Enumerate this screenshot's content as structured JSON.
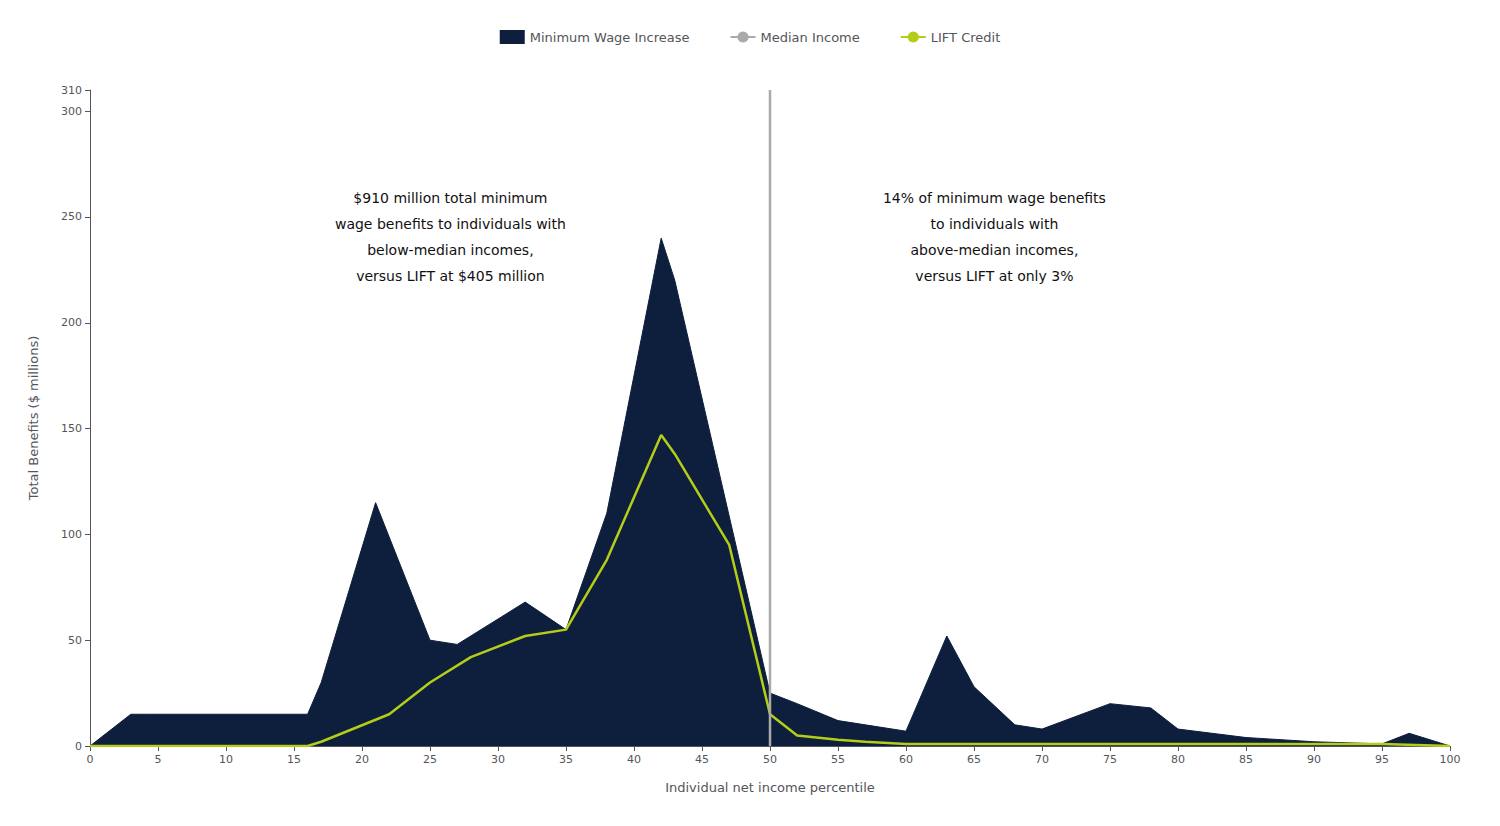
{
  "chart_data": {
    "type": "line",
    "xlabel": "Individual net income percentile",
    "ylabel": "Total Benefits ($ millions)",
    "xlim": [
      0,
      100
    ],
    "ylim": [
      0,
      310
    ],
    "xticks": [
      0,
      5,
      10,
      15,
      20,
      25,
      30,
      35,
      40,
      45,
      50,
      55,
      60,
      65,
      70,
      75,
      80,
      85,
      90,
      95,
      100
    ],
    "yticks": [
      0,
      50,
      100,
      150,
      200,
      250,
      300
    ],
    "grid": false,
    "legend": "top",
    "series": [
      {
        "name": "Minimum Wage Increase",
        "type": "area",
        "color": "#0d1f3c",
        "x": [
          0,
          3,
          4,
          16,
          17,
          21,
          25,
          27,
          32,
          35,
          38,
          42,
          43,
          50,
          52,
          55,
          57,
          60,
          63,
          65,
          68,
          70,
          75,
          78,
          80,
          85,
          90,
          95,
          97,
          100
        ],
        "values": [
          0,
          15,
          15,
          15,
          30,
          115,
          50,
          48,
          68,
          55,
          110,
          240,
          220,
          25,
          20,
          12,
          10,
          7,
          52,
          28,
          10,
          8,
          20,
          18,
          8,
          4,
          2,
          1,
          6,
          0
        ]
      },
      {
        "name": "Median Income",
        "type": "vline",
        "color": "#aaaaaa",
        "x": 50
      },
      {
        "name": "LIFT Credit",
        "type": "line",
        "color": "#b5cc18",
        "x": [
          0,
          3,
          16,
          17,
          22,
          25,
          28,
          32,
          35,
          38,
          42,
          43,
          47,
          50,
          52,
          55,
          57,
          60,
          65,
          70,
          75,
          80,
          85,
          90,
          95,
          100
        ],
        "values": [
          0,
          0,
          0,
          2,
          15,
          30,
          42,
          52,
          55,
          88,
          147,
          138,
          95,
          15,
          5,
          3,
          2,
          1,
          1,
          1,
          1,
          1,
          1,
          1,
          1,
          0
        ]
      }
    ],
    "annotations": [
      {
        "lines": [
          "$910 million total minimum",
          "wage benefits to individuals with",
          "below-median incomes,",
          "versus LIFT at $405 million"
        ]
      },
      {
        "lines": [
          "14% of minimum wage benefits",
          "to individuals with",
          "above-median incomes,",
          "versus LIFT at only 3%"
        ]
      }
    ]
  }
}
